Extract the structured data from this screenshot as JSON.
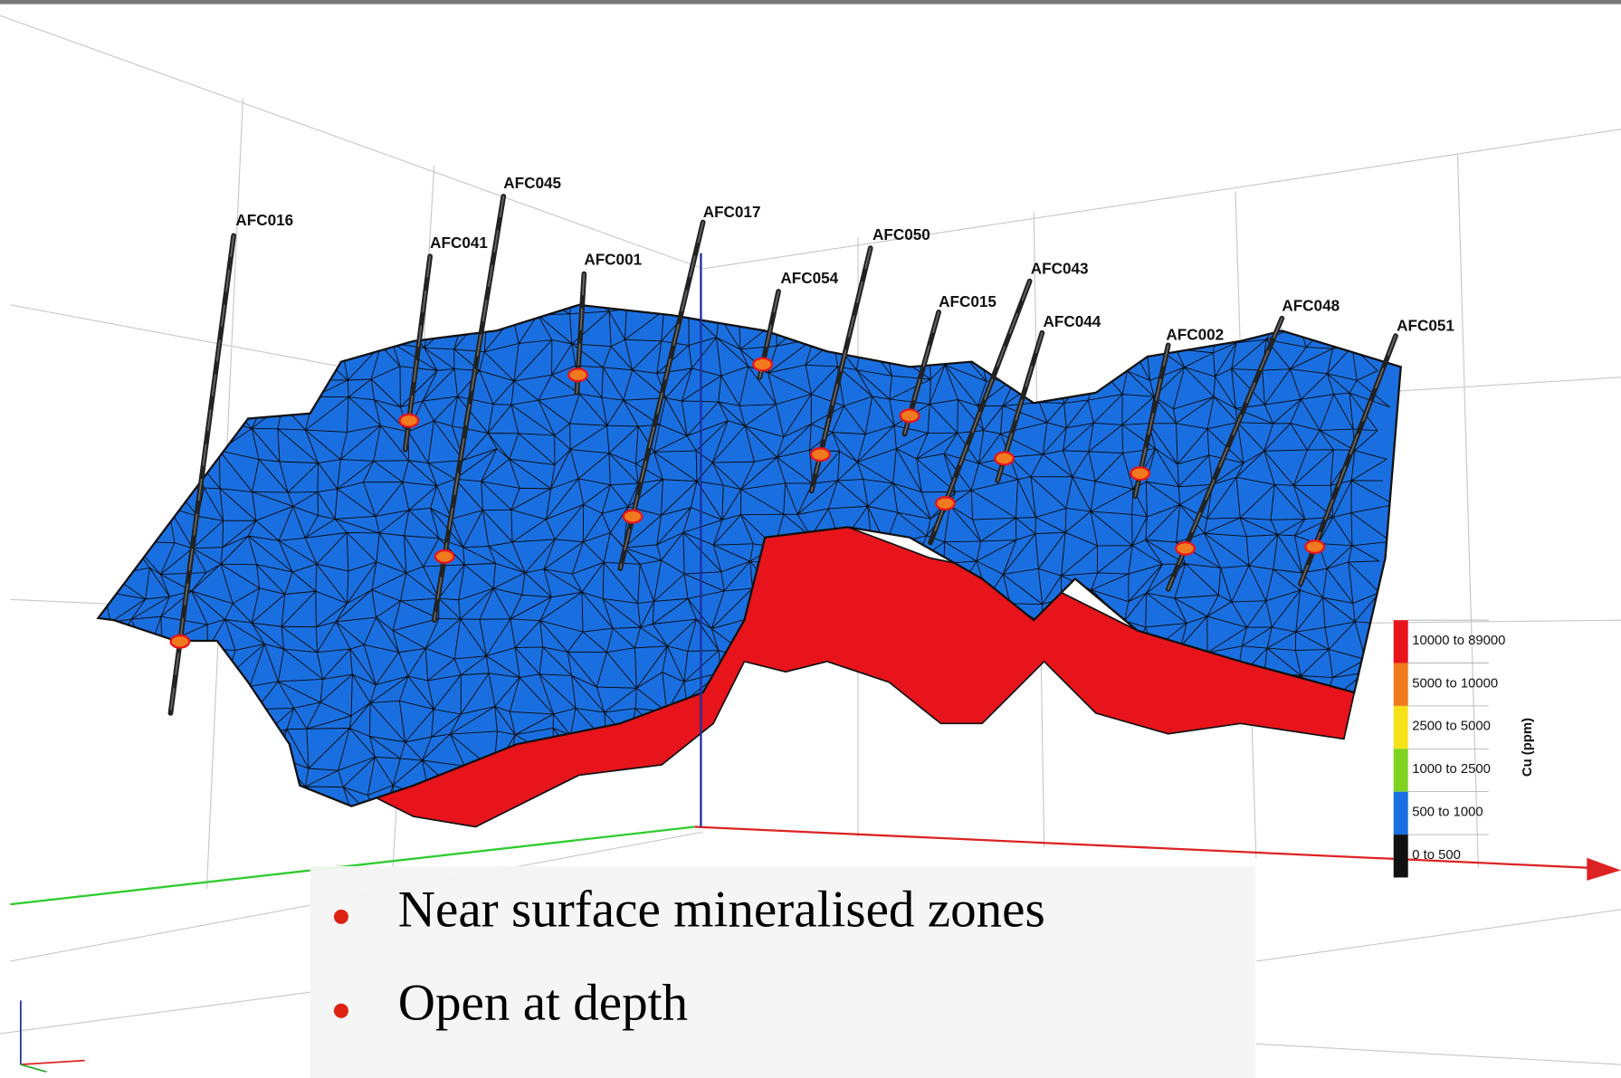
{
  "drill_holes": [
    "AFC016",
    "AFC045",
    "AFC041",
    "AFC001",
    "AFC017",
    "AFC054",
    "AFC050",
    "AFC015",
    "AFC043",
    "AFC044",
    "AFC002",
    "AFC048",
    "AFC051"
  ],
  "legend": {
    "title": "Cu (ppm)",
    "items": [
      {
        "label": "10000 to 89000",
        "color": "#e8141c"
      },
      {
        "label": "5000 to 10000",
        "color": "#f07a1e"
      },
      {
        "label": "2500 to 5000",
        "color": "#f7e21a"
      },
      {
        "label": "1000 to 2500",
        "color": "#7ed321"
      },
      {
        "label": "500 to 1000",
        "color": "#1a6fe0"
      },
      {
        "label": "0 to 500",
        "color": "#111111"
      }
    ]
  },
  "bullets": [
    "Near surface mineralised zones",
    "Open at depth"
  ]
}
